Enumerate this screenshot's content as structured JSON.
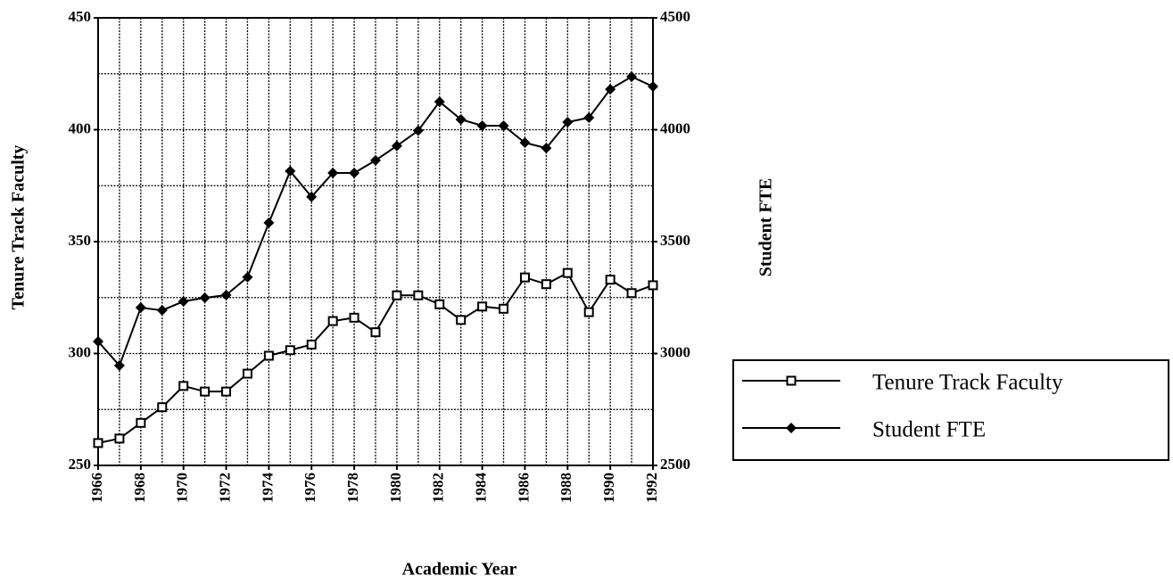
{
  "chart_data": {
    "type": "line",
    "x_label": "Academic Year",
    "y_label": "Tenure Track Faculty",
    "y2_label": "Student FTE",
    "x": [
      1966,
      1967,
      1968,
      1969,
      1970,
      1971,
      1972,
      1973,
      1974,
      1975,
      1976,
      1977,
      1978,
      1979,
      1980,
      1981,
      1982,
      1983,
      1984,
      1985,
      1986,
      1987,
      1988,
      1989,
      1990,
      1991,
      1992
    ],
    "xlim": [
      1966,
      1992
    ],
    "xticks": [
      1966,
      1968,
      1970,
      1972,
      1974,
      1976,
      1978,
      1980,
      1982,
      1984,
      1986,
      1988,
      1990,
      1992
    ],
    "ylim": [
      250,
      450
    ],
    "yticks": [
      250,
      300,
      350,
      400,
      450
    ],
    "y2lim": [
      2500,
      4500
    ],
    "y2ticks": [
      2500,
      3000,
      3500,
      4000,
      4500
    ],
    "grid": true,
    "legend": "right",
    "series": [
      {
        "name": "Tenure Track Faculty",
        "color": "#000000",
        "marker": "square",
        "values": [
          260,
          262,
          269,
          276,
          285.5,
          283,
          283,
          291,
          299,
          301.5,
          304,
          314.5,
          316,
          309.5,
          326,
          326,
          322,
          315,
          321,
          320,
          334,
          331,
          336,
          318.5,
          333,
          327,
          330.5
        ]
      },
      {
        "name": "Student FTE",
        "color": "#000000",
        "marker": "diamond",
        "axis": "y2",
        "values": [
          3054,
          2946,
          3205,
          3193,
          3233,
          3249,
          3261,
          3341,
          3584,
          3815,
          3700,
          3807,
          3807,
          3863,
          3928,
          3996,
          4125,
          4046,
          4018,
          4018,
          3942,
          3918,
          4034,
          4054,
          4181,
          4237,
          4193
        ]
      }
    ]
  }
}
